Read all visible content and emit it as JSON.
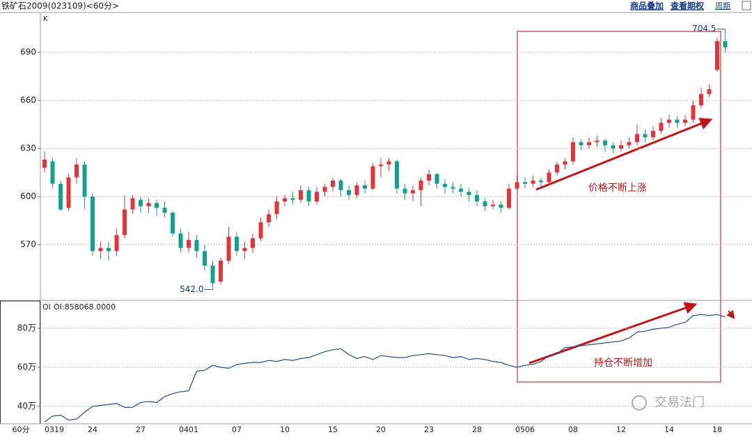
{
  "header": {
    "title": "铁矿石2009(023109)<60分>",
    "links": [
      "商品叠加",
      "查看期权"
    ],
    "cycle": "周期"
  },
  "watermark": "交易法门",
  "chart_data": [
    {
      "type": "candlestick",
      "title": "K",
      "xlabel": "60分",
      "categories": [
        "0319",
        null,
        null,
        null,
        null,
        null,
        "24",
        null,
        null,
        null,
        null,
        null,
        "27",
        null,
        null,
        null,
        null,
        null,
        "0401",
        null,
        null,
        null,
        null,
        null,
        "07",
        null,
        null,
        null,
        null,
        null,
        "10",
        null,
        null,
        null,
        null,
        null,
        "15",
        null,
        null,
        null,
        null,
        null,
        "20",
        null,
        null,
        null,
        null,
        null,
        "23",
        null,
        null,
        null,
        null,
        null,
        "28",
        null,
        null,
        null,
        null,
        null,
        "0506",
        null,
        null,
        null,
        null,
        null,
        "08",
        null,
        null,
        null,
        null,
        null,
        "12",
        null,
        null,
        null,
        null,
        null,
        "14",
        null,
        null,
        null,
        null,
        null,
        "18",
        null
      ],
      "open": [
        618,
        622,
        608,
        593,
        612,
        620,
        600,
        566,
        568,
        566,
        576,
        592,
        598,
        594,
        596,
        593,
        590,
        577,
        568,
        573,
        566,
        557,
        547,
        560,
        575,
        566,
        568,
        574,
        584,
        589,
        597,
        599,
        598,
        604,
        597,
        603,
        606,
        610,
        604,
        601,
        607,
        605,
        619,
        620,
        622,
        605,
        602,
        604,
        610,
        614,
        608,
        606,
        605,
        603,
        601,
        597,
        594,
        595,
        593,
        605,
        609,
        608,
        610,
        609,
        615,
        620,
        622,
        634,
        632,
        634,
        635,
        632,
        630,
        632,
        634,
        639,
        637,
        641,
        646,
        648,
        646,
        648,
        657,
        664,
        679,
        697
      ],
      "high": [
        628,
        624,
        610,
        614,
        624,
        622,
        602,
        572,
        572,
        580,
        601,
        601,
        600,
        599,
        598,
        597,
        591,
        580,
        578,
        576,
        570,
        560,
        562,
        581,
        578,
        572,
        577,
        587,
        592,
        600,
        601,
        603,
        607,
        606,
        606,
        608,
        612,
        611,
        607,
        609,
        610,
        621,
        624,
        624,
        623,
        608,
        607,
        612,
        617,
        615,
        611,
        609,
        608,
        605,
        604,
        599,
        598,
        597,
        608,
        613,
        612,
        613,
        612,
        617,
        622,
        624,
        637,
        636,
        637,
        638,
        636,
        634,
        635,
        637,
        645,
        642,
        644,
        649,
        651,
        650,
        651,
        660,
        668,
        670,
        699,
        704.5
      ],
      "low": [
        615,
        605,
        591,
        591,
        608,
        592,
        563,
        561,
        560,
        563,
        574,
        589,
        590,
        590,
        588,
        587,
        575,
        565,
        565,
        562,
        554,
        542,
        545,
        558,
        563,
        561,
        565,
        572,
        581,
        586,
        594,
        595,
        596,
        594,
        595,
        600,
        603,
        600,
        598,
        599,
        602,
        604,
        612,
        616,
        602,
        598,
        597,
        594,
        607,
        605,
        602,
        602,
        600,
        597,
        594,
        591,
        592,
        590,
        592,
        604,
        605,
        606,
        606,
        607,
        613,
        617,
        620,
        629,
        630,
        631,
        628,
        627,
        628,
        630,
        632,
        634,
        635,
        639,
        643,
        643,
        644,
        646,
        655,
        662,
        678,
        690
      ],
      "close": [
        623,
        608,
        592,
        612,
        620,
        600,
        566,
        568,
        566,
        576,
        592,
        599,
        594,
        596,
        593,
        590,
        577,
        568,
        573,
        566,
        557,
        546,
        560,
        575,
        566,
        568,
        574,
        584,
        589,
        597,
        599,
        598,
        604,
        597,
        603,
        606,
        610,
        604,
        601,
        607,
        605,
        619,
        620,
        622,
        605,
        602,
        604,
        610,
        614,
        608,
        606,
        605,
        603,
        601,
        597,
        594,
        595,
        593,
        605,
        609,
        608,
        610,
        609,
        615,
        620,
        622,
        634,
        632,
        634,
        635,
        632,
        630,
        632,
        634,
        639,
        637,
        641,
        646,
        648,
        646,
        648,
        657,
        664,
        667,
        697,
        693
      ],
      "up_color": "#e3343a",
      "down_color": "#14a08a",
      "ylim": [
        535.7,
        714.8
      ],
      "yticks": [
        570,
        600,
        630,
        660,
        690
      ],
      "grid": true,
      "extremes": [
        {
          "value": 542,
          "label": "542.0"
        },
        {
          "value": 704.5,
          "label": "704.5"
        }
      ],
      "annotations": [
        "价格不断上涨"
      ]
    },
    {
      "type": "line",
      "title": "OI",
      "legend_label": "OI:858068.0000",
      "color": "#2b4a7a",
      "values": [
        320000,
        350000,
        355000,
        330000,
        335000,
        370000,
        400000,
        405000,
        410000,
        415000,
        395000,
        395000,
        420000,
        425000,
        420000,
        450000,
        465000,
        475000,
        480000,
        580000,
        585000,
        610000,
        600000,
        595000,
        615000,
        620000,
        625000,
        625000,
        635000,
        630000,
        640000,
        635000,
        645000,
        650000,
        665000,
        680000,
        690000,
        695000,
        665000,
        645000,
        655000,
        640000,
        660000,
        655000,
        650000,
        650000,
        660000,
        665000,
        670000,
        665000,
        660000,
        650000,
        655000,
        640000,
        645000,
        640000,
        630000,
        625000,
        610000,
        600000,
        610000,
        615000,
        630000,
        660000,
        670000,
        700000,
        705000,
        710000,
        715000,
        720000,
        725000,
        730000,
        735000,
        750000,
        780000,
        785000,
        795000,
        800000,
        805000,
        820000,
        830000,
        865000,
        870000,
        865000,
        870000,
        858068
      ],
      "ylim": [
        311000,
        939000
      ],
      "yticks": [
        {
          "value": 400000,
          "label": "40万"
        },
        {
          "value": 600000,
          "label": "60万"
        },
        {
          "value": 800000,
          "label": "80万"
        }
      ],
      "grid": true,
      "annotations": [
        "持仓不断增加"
      ]
    }
  ]
}
